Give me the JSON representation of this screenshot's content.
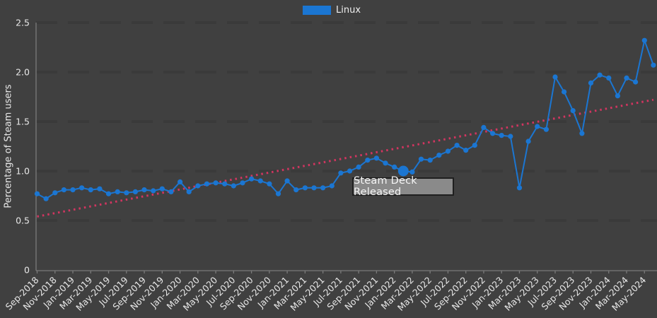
{
  "figure": {
    "background_color": "#404040",
    "text_color": "#e8e8e8"
  },
  "legend": {
    "label": "Linux",
    "swatch_color": "#1b76d2"
  },
  "y_axis": {
    "title": "Percentage of Steam users"
  },
  "annotation": {
    "text": "Steam Deck Released",
    "box_color": "#8a8a8a",
    "border_color": "#1f1f1f",
    "text_color": "#f5f5f5"
  },
  "chart_data": {
    "type": "line",
    "title": "",
    "xlabel": "",
    "ylabel": "Percentage of Steam users",
    "ylim": [
      0,
      2.5
    ],
    "y_ticks": [
      "0",
      "0.5",
      "1.0",
      "1.5",
      "2.0",
      "2.5"
    ],
    "x_tick_every": 2,
    "grid": "horizontal-dashed",
    "legend_position": "top-center",
    "x": [
      "Sep-2018",
      "Oct-2018",
      "Nov-2018",
      "Dec-2018",
      "Jan-2019",
      "Feb-2019",
      "Mar-2019",
      "Apr-2019",
      "May-2019",
      "Jun-2019",
      "Jul-2019",
      "Aug-2019",
      "Sep-2019",
      "Oct-2019",
      "Nov-2019",
      "Dec-2019",
      "Jan-2020",
      "Feb-2020",
      "Mar-2020",
      "Apr-2020",
      "May-2020",
      "Jun-2020",
      "Jul-2020",
      "Aug-2020",
      "Sep-2020",
      "Oct-2020",
      "Nov-2020",
      "Dec-2020",
      "Jan-2021",
      "Feb-2021",
      "Mar-2021",
      "Apr-2021",
      "May-2021",
      "Jun-2021",
      "Jul-2021",
      "Aug-2021",
      "Sep-2021",
      "Oct-2021",
      "Nov-2021",
      "Dec-2021",
      "Jan-2022",
      "Feb-2022",
      "Mar-2022",
      "Apr-2022",
      "May-2022",
      "Jun-2022",
      "Jul-2022",
      "Aug-2022",
      "Sep-2022",
      "Oct-2022",
      "Nov-2022",
      "Dec-2022",
      "Jan-2023",
      "Feb-2023",
      "Mar-2023",
      "Apr-2023",
      "May-2023",
      "Jun-2023",
      "Jul-2023",
      "Aug-2023",
      "Sep-2023",
      "Oct-2023",
      "Nov-2023",
      "Dec-2023",
      "Jan-2024",
      "Feb-2024",
      "Mar-2024",
      "Apr-2024",
      "May-2024",
      "Jun-2024"
    ],
    "series": [
      {
        "name": "Linux",
        "color": "#1b76d2",
        "values": [
          0.77,
          0.72,
          0.78,
          0.81,
          0.81,
          0.83,
          0.81,
          0.82,
          0.77,
          0.79,
          0.78,
          0.79,
          0.81,
          0.8,
          0.82,
          0.79,
          0.89,
          0.79,
          0.85,
          0.87,
          0.88,
          0.87,
          0.85,
          0.88,
          0.92,
          0.9,
          0.87,
          0.77,
          0.9,
          0.81,
          0.83,
          0.83,
          0.83,
          0.85,
          0.98,
          1.0,
          1.04,
          1.11,
          1.13,
          1.08,
          1.04,
          1.0,
          0.99,
          1.12,
          1.11,
          1.16,
          1.2,
          1.26,
          1.21,
          1.26,
          1.44,
          1.38,
          1.36,
          1.35,
          0.83,
          1.3,
          1.45,
          1.42,
          1.95,
          1.8,
          1.61,
          1.38,
          1.89,
          1.97,
          1.94,
          1.76,
          1.94,
          1.9,
          2.32,
          2.07
        ]
      }
    ],
    "trend": {
      "color": "#d23560",
      "style": "dotted",
      "start_value": 0.54,
      "end_value": 1.72
    },
    "highlight": {
      "month": "Feb-2022",
      "index": 41,
      "value": 1.0,
      "label": "Steam Deck Released"
    }
  }
}
